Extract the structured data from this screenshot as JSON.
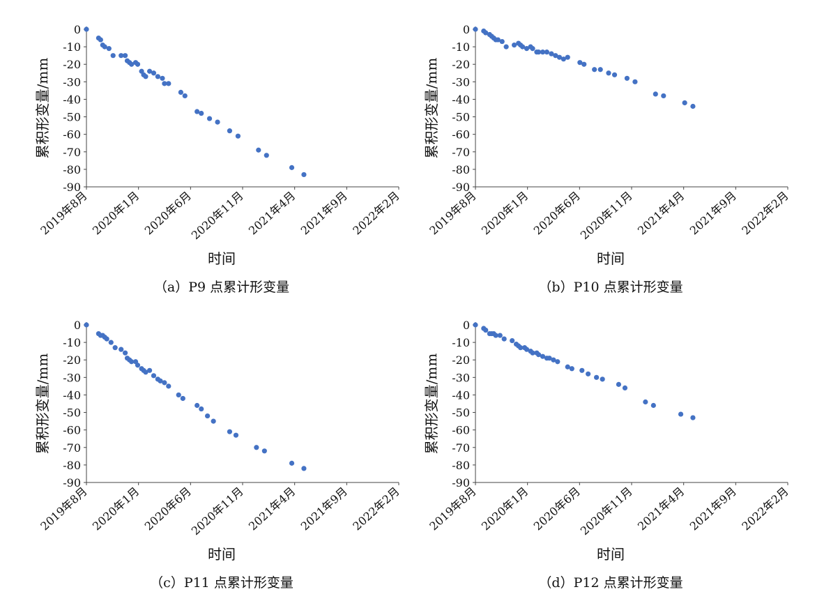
{
  "chart_data": [
    {
      "type": "scatter",
      "caption": "（a）P9 点累计形变量",
      "xlabel": "时间",
      "ylabel": "累积形变量/mm",
      "ylim": [
        -90,
        0
      ],
      "yticks": [
        0,
        -10,
        -20,
        -30,
        -40,
        -50,
        -60,
        -70,
        -80,
        -90
      ],
      "xlim": [
        "2019-08",
        "2022-02"
      ],
      "xticks": [
        "2019年8月",
        "2020年1月",
        "2020年6月",
        "2020年11月",
        "2021年4月",
        "2021年9月",
        "2022年2月"
      ],
      "points": [
        {
          "x": "2019-08-01",
          "y": 0
        },
        {
          "x": "2019-09-06",
          "y": -5
        },
        {
          "x": "2019-09-12",
          "y": -6
        },
        {
          "x": "2019-09-18",
          "y": -9
        },
        {
          "x": "2019-09-24",
          "y": -10
        },
        {
          "x": "2019-10-06",
          "y": -11
        },
        {
          "x": "2019-10-18",
          "y": -15
        },
        {
          "x": "2019-11-11",
          "y": -15
        },
        {
          "x": "2019-11-23",
          "y": -15
        },
        {
          "x": "2019-11-29",
          "y": -18
        },
        {
          "x": "2019-12-05",
          "y": -19
        },
        {
          "x": "2019-12-11",
          "y": -20
        },
        {
          "x": "2019-12-23",
          "y": -19
        },
        {
          "x": "2019-12-29",
          "y": -20
        },
        {
          "x": "2020-01-10",
          "y": -24
        },
        {
          "x": "2020-01-16",
          "y": -26
        },
        {
          "x": "2020-01-22",
          "y": -27
        },
        {
          "x": "2020-02-03",
          "y": -24
        },
        {
          "x": "2020-02-15",
          "y": -25
        },
        {
          "x": "2020-02-27",
          "y": -27
        },
        {
          "x": "2020-03-10",
          "y": -28
        },
        {
          "x": "2020-03-16",
          "y": -31
        },
        {
          "x": "2020-03-28",
          "y": -31
        },
        {
          "x": "2020-05-03",
          "y": -36
        },
        {
          "x": "2020-05-15",
          "y": -38
        },
        {
          "x": "2020-06-20",
          "y": -47
        },
        {
          "x": "2020-07-02",
          "y": -48
        },
        {
          "x": "2020-07-26",
          "y": -51
        },
        {
          "x": "2020-08-19",
          "y": -53
        },
        {
          "x": "2020-09-24",
          "y": -58
        },
        {
          "x": "2020-10-18",
          "y": -61
        },
        {
          "x": "2020-12-17",
          "y": -69
        },
        {
          "x": "2021-01-10",
          "y": -72
        },
        {
          "x": "2021-03-23",
          "y": -79
        },
        {
          "x": "2021-04-28",
          "y": -83
        }
      ]
    },
    {
      "type": "scatter",
      "caption": "（b）P10 点累计形变量",
      "xlabel": "时间",
      "ylabel": "累积形变量/mm",
      "ylim": [
        -90,
        0
      ],
      "yticks": [
        0,
        -10,
        -20,
        -30,
        -40,
        -50,
        -60,
        -70,
        -80,
        -90
      ],
      "xlim": [
        "2019-08",
        "2022-02"
      ],
      "xticks": [
        "2019年8月",
        "2020年1月",
        "2020年6月",
        "2020年11月",
        "2021年4月",
        "2021年9月",
        "2022年2月"
      ],
      "points": [
        {
          "x": "2019-08-01",
          "y": 0
        },
        {
          "x": "2019-08-25",
          "y": -1
        },
        {
          "x": "2019-08-31",
          "y": -2
        },
        {
          "x": "2019-09-12",
          "y": -3
        },
        {
          "x": "2019-09-18",
          "y": -4
        },
        {
          "x": "2019-09-24",
          "y": -5
        },
        {
          "x": "2019-09-30",
          "y": -6
        },
        {
          "x": "2019-10-06",
          "y": -6
        },
        {
          "x": "2019-10-18",
          "y": -7
        },
        {
          "x": "2019-10-30",
          "y": -10
        },
        {
          "x": "2019-11-23",
          "y": -9
        },
        {
          "x": "2019-12-05",
          "y": -8
        },
        {
          "x": "2019-12-11",
          "y": -9
        },
        {
          "x": "2019-12-17",
          "y": -10
        },
        {
          "x": "2019-12-29",
          "y": -11
        },
        {
          "x": "2020-01-10",
          "y": -10
        },
        {
          "x": "2020-01-16",
          "y": -11
        },
        {
          "x": "2020-01-28",
          "y": -13
        },
        {
          "x": "2020-02-03",
          "y": -13
        },
        {
          "x": "2020-02-15",
          "y": -13
        },
        {
          "x": "2020-02-27",
          "y": -13
        },
        {
          "x": "2020-03-10",
          "y": -14
        },
        {
          "x": "2020-03-22",
          "y": -15
        },
        {
          "x": "2020-04-03",
          "y": -16
        },
        {
          "x": "2020-04-15",
          "y": -17
        },
        {
          "x": "2020-04-27",
          "y": -16
        },
        {
          "x": "2020-06-02",
          "y": -19
        },
        {
          "x": "2020-06-14",
          "y": -20
        },
        {
          "x": "2020-07-14",
          "y": -23
        },
        {
          "x": "2020-08-01",
          "y": -23
        },
        {
          "x": "2020-08-25",
          "y": -25
        },
        {
          "x": "2020-09-12",
          "y": -26
        },
        {
          "x": "2020-10-18",
          "y": -28
        },
        {
          "x": "2020-11-11",
          "y": -30
        },
        {
          "x": "2021-01-10",
          "y": -37
        },
        {
          "x": "2021-02-03",
          "y": -38
        },
        {
          "x": "2021-04-04",
          "y": -42
        },
        {
          "x": "2021-04-28",
          "y": -44
        }
      ]
    },
    {
      "type": "scatter",
      "caption": "（c）P11 点累计形变量",
      "xlabel": "时间",
      "ylabel": "累积形变量/mm",
      "ylim": [
        -90,
        0
      ],
      "yticks": [
        0,
        -10,
        -20,
        -30,
        -40,
        -50,
        -60,
        -70,
        -80,
        -90
      ],
      "xlim": [
        "2019-08",
        "2022-02"
      ],
      "xticks": [
        "2019年8月",
        "2020年1月",
        "2020年6月",
        "2020年11月",
        "2021年4月",
        "2021年9月",
        "2022年2月"
      ],
      "points": [
        {
          "x": "2019-08-01",
          "y": 0
        },
        {
          "x": "2019-09-06",
          "y": -5
        },
        {
          "x": "2019-09-12",
          "y": -6
        },
        {
          "x": "2019-09-18",
          "y": -6
        },
        {
          "x": "2019-09-24",
          "y": -7
        },
        {
          "x": "2019-09-30",
          "y": -8
        },
        {
          "x": "2019-10-12",
          "y": -10
        },
        {
          "x": "2019-10-24",
          "y": -13
        },
        {
          "x": "2019-11-11",
          "y": -14
        },
        {
          "x": "2019-11-23",
          "y": -16
        },
        {
          "x": "2019-11-29",
          "y": -19
        },
        {
          "x": "2019-12-05",
          "y": -20
        },
        {
          "x": "2019-12-11",
          "y": -21
        },
        {
          "x": "2019-12-23",
          "y": -21
        },
        {
          "x": "2019-12-29",
          "y": -23
        },
        {
          "x": "2020-01-10",
          "y": -25
        },
        {
          "x": "2020-01-16",
          "y": -26
        },
        {
          "x": "2020-01-22",
          "y": -27
        },
        {
          "x": "2020-02-03",
          "y": -26
        },
        {
          "x": "2020-02-15",
          "y": -29
        },
        {
          "x": "2020-02-27",
          "y": -31
        },
        {
          "x": "2020-03-04",
          "y": -32
        },
        {
          "x": "2020-03-16",
          "y": -33
        },
        {
          "x": "2020-03-28",
          "y": -35
        },
        {
          "x": "2020-04-27",
          "y": -40
        },
        {
          "x": "2020-05-09",
          "y": -42
        },
        {
          "x": "2020-06-20",
          "y": -46
        },
        {
          "x": "2020-07-02",
          "y": -48
        },
        {
          "x": "2020-07-20",
          "y": -52
        },
        {
          "x": "2020-08-07",
          "y": -55
        },
        {
          "x": "2020-09-24",
          "y": -61
        },
        {
          "x": "2020-10-12",
          "y": -63
        },
        {
          "x": "2020-12-11",
          "y": -70
        },
        {
          "x": "2021-01-04",
          "y": -72
        },
        {
          "x": "2021-03-23",
          "y": -79
        },
        {
          "x": "2021-04-28",
          "y": -82
        }
      ]
    },
    {
      "type": "scatter",
      "caption": "（d）P12 点累计形变量",
      "xlabel": "时间",
      "ylabel": "累积形变量/mm",
      "ylim": [
        -90,
        0
      ],
      "yticks": [
        0,
        -10,
        -20,
        -30,
        -40,
        -50,
        -60,
        -70,
        -80,
        -90
      ],
      "xlim": [
        "2019-08",
        "2022-02"
      ],
      "xticks": [
        "2019年8月",
        "2020年1月",
        "2020年6月",
        "2020年11月",
        "2021年4月",
        "2021年9月",
        "2022年2月"
      ],
      "points": [
        {
          "x": "2019-08-01",
          "y": 0
        },
        {
          "x": "2019-08-25",
          "y": -2
        },
        {
          "x": "2019-08-31",
          "y": -3
        },
        {
          "x": "2019-09-12",
          "y": -5
        },
        {
          "x": "2019-09-18",
          "y": -5
        },
        {
          "x": "2019-09-24",
          "y": -5
        },
        {
          "x": "2019-09-30",
          "y": -6
        },
        {
          "x": "2019-10-12",
          "y": -6
        },
        {
          "x": "2019-10-24",
          "y": -8
        },
        {
          "x": "2019-11-17",
          "y": -9
        },
        {
          "x": "2019-11-29",
          "y": -11
        },
        {
          "x": "2019-12-05",
          "y": -12
        },
        {
          "x": "2019-12-11",
          "y": -13
        },
        {
          "x": "2019-12-23",
          "y": -13
        },
        {
          "x": "2019-12-29",
          "y": -14
        },
        {
          "x": "2020-01-10",
          "y": -15
        },
        {
          "x": "2020-01-16",
          "y": -16
        },
        {
          "x": "2020-01-28",
          "y": -16
        },
        {
          "x": "2020-02-03",
          "y": -17
        },
        {
          "x": "2020-02-15",
          "y": -18
        },
        {
          "x": "2020-02-27",
          "y": -19
        },
        {
          "x": "2020-03-04",
          "y": -19
        },
        {
          "x": "2020-03-16",
          "y": -20
        },
        {
          "x": "2020-03-28",
          "y": -21
        },
        {
          "x": "2020-04-27",
          "y": -24
        },
        {
          "x": "2020-05-09",
          "y": -25
        },
        {
          "x": "2020-06-08",
          "y": -26
        },
        {
          "x": "2020-06-26",
          "y": -28
        },
        {
          "x": "2020-07-20",
          "y": -30
        },
        {
          "x": "2020-08-07",
          "y": -31
        },
        {
          "x": "2020-09-24",
          "y": -34
        },
        {
          "x": "2020-10-12",
          "y": -36
        },
        {
          "x": "2020-12-11",
          "y": -44
        },
        {
          "x": "2021-01-04",
          "y": -46
        },
        {
          "x": "2021-03-23",
          "y": -51
        },
        {
          "x": "2021-04-28",
          "y": -53
        }
      ]
    }
  ]
}
